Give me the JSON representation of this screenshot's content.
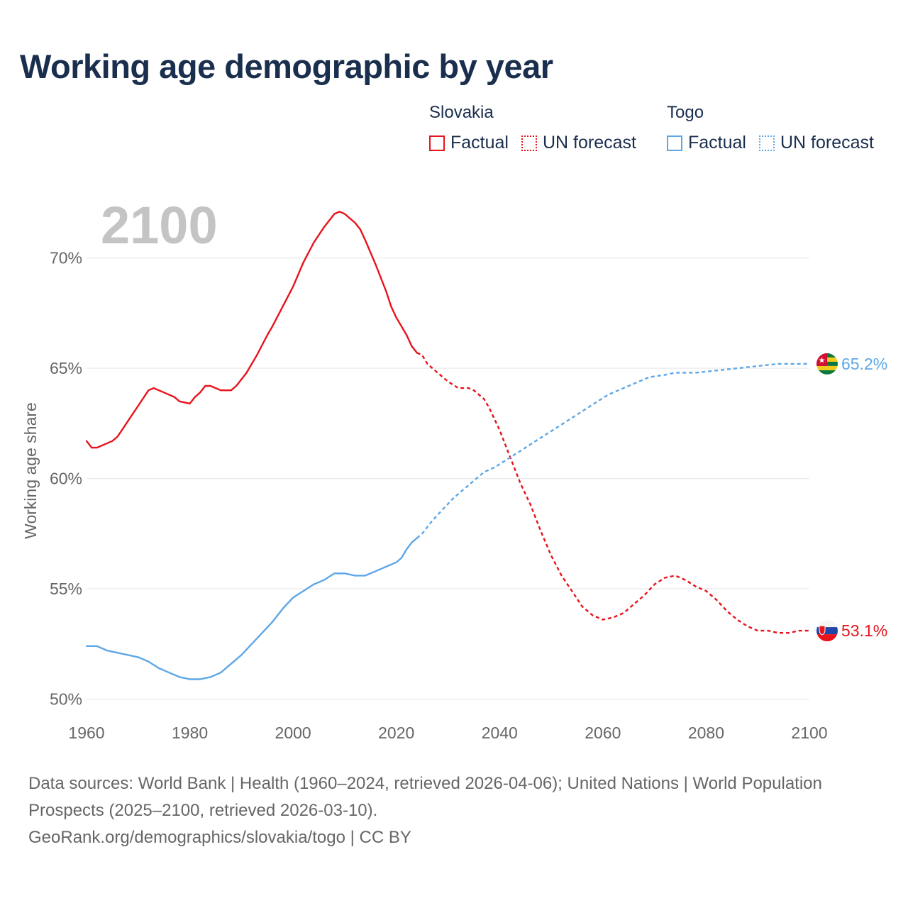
{
  "title": "Working age demographic by year",
  "legend": {
    "groups": [
      {
        "name": "Slovakia",
        "items": [
          "Factual",
          "UN forecast"
        ],
        "color": "#e8131b"
      },
      {
        "name": "Togo",
        "items": [
          "Factual",
          "UN forecast"
        ],
        "color": "#5ea7e6"
      }
    ]
  },
  "footer": {
    "sources": "Data sources: World Bank | Health (1960–2024, retrieved 2026-04-06); United Nations | World Population Prospects (2025–2100, retrieved 2026-03-10).",
    "link": "GeoRank.org/demographics/slovakia/togo | CC BY"
  },
  "colors": {
    "slovakia": "#e8131b",
    "togo": "#5ea7e6",
    "grid": "#e6e6e6",
    "axis_text": "#666666",
    "year_watermark": "#c4c4c4"
  },
  "chart_data": {
    "type": "line",
    "year_label": "2100",
    "ylabel": "Working age share",
    "xlim": [
      1960,
      2100
    ],
    "ylim": [
      49.5,
      72.5
    ],
    "x_ticks": [
      1960,
      1980,
      2000,
      2020,
      2040,
      2060,
      2080,
      2100
    ],
    "x_tick_labels": [
      "1960",
      "1980",
      "2000",
      "2020",
      "2040",
      "2060",
      "2080",
      "2100"
    ],
    "y_ticks": [
      50,
      55,
      60,
      65,
      70
    ],
    "y_tick_labels": [
      "50%",
      "55%",
      "60%",
      "65%",
      "70%"
    ],
    "series": [
      {
        "name": "Slovakia",
        "color": "#e8131b",
        "end_label": "53.1%",
        "end_icon": "slovakia-flag-icon",
        "factual": [
          [
            1960,
            61.7
          ],
          [
            1961,
            61.4
          ],
          [
            1962,
            61.4
          ],
          [
            1964,
            61.6
          ],
          [
            1965,
            61.7
          ],
          [
            1966,
            61.9
          ],
          [
            1968,
            62.6
          ],
          [
            1970,
            63.3
          ],
          [
            1972,
            64.0
          ],
          [
            1973,
            64.1
          ],
          [
            1975,
            63.9
          ],
          [
            1977,
            63.7
          ],
          [
            1978,
            63.5
          ],
          [
            1980,
            63.4
          ],
          [
            1981,
            63.7
          ],
          [
            1982,
            63.9
          ],
          [
            1983,
            64.2
          ],
          [
            1984,
            64.2
          ],
          [
            1985,
            64.1
          ],
          [
            1986,
            64.0
          ],
          [
            1988,
            64.0
          ],
          [
            1989,
            64.2
          ],
          [
            1990,
            64.5
          ],
          [
            1991,
            64.8
          ],
          [
            1993,
            65.6
          ],
          [
            1995,
            66.5
          ],
          [
            1996,
            66.9
          ],
          [
            1998,
            67.8
          ],
          [
            2000,
            68.7
          ],
          [
            2002,
            69.8
          ],
          [
            2004,
            70.7
          ],
          [
            2006,
            71.4
          ],
          [
            2008,
            72.0
          ],
          [
            2009,
            72.1
          ],
          [
            2010,
            72.0
          ],
          [
            2011,
            71.8
          ],
          [
            2012,
            71.6
          ],
          [
            2013,
            71.3
          ],
          [
            2014,
            70.8
          ],
          [
            2016,
            69.7
          ],
          [
            2018,
            68.5
          ],
          [
            2019,
            67.8
          ],
          [
            2020,
            67.3
          ],
          [
            2022,
            66.5
          ],
          [
            2023,
            66.0
          ],
          [
            2024,
            65.7
          ]
        ],
        "forecast": [
          [
            2024,
            65.7
          ],
          [
            2025,
            65.6
          ],
          [
            2026,
            65.2
          ],
          [
            2028,
            64.8
          ],
          [
            2030,
            64.4
          ],
          [
            2032,
            64.1
          ],
          [
            2034,
            64.1
          ],
          [
            2035,
            64.0
          ],
          [
            2037,
            63.6
          ],
          [
            2038,
            63.2
          ],
          [
            2040,
            62.2
          ],
          [
            2042,
            61.0
          ],
          [
            2044,
            59.8
          ],
          [
            2046,
            58.8
          ],
          [
            2048,
            57.6
          ],
          [
            2050,
            56.5
          ],
          [
            2052,
            55.6
          ],
          [
            2054,
            54.9
          ],
          [
            2056,
            54.2
          ],
          [
            2058,
            53.8
          ],
          [
            2060,
            53.6
          ],
          [
            2062,
            53.7
          ],
          [
            2064,
            53.9
          ],
          [
            2066,
            54.3
          ],
          [
            2068,
            54.7
          ],
          [
            2070,
            55.2
          ],
          [
            2072,
            55.5
          ],
          [
            2074,
            55.6
          ],
          [
            2076,
            55.4
          ],
          [
            2078,
            55.1
          ],
          [
            2080,
            54.9
          ],
          [
            2082,
            54.5
          ],
          [
            2084,
            54.0
          ],
          [
            2086,
            53.6
          ],
          [
            2088,
            53.3
          ],
          [
            2090,
            53.1
          ],
          [
            2092,
            53.1
          ],
          [
            2094,
            53.0
          ],
          [
            2096,
            53.0
          ],
          [
            2098,
            53.1
          ],
          [
            2100,
            53.1
          ]
        ]
      },
      {
        "name": "Togo",
        "color": "#5ea7e6",
        "end_label": "65.2%",
        "end_icon": "togo-flag-icon",
        "factual": [
          [
            1960,
            52.4
          ],
          [
            1962,
            52.4
          ],
          [
            1964,
            52.2
          ],
          [
            1966,
            52.1
          ],
          [
            1968,
            52.0
          ],
          [
            1970,
            51.9
          ],
          [
            1972,
            51.7
          ],
          [
            1974,
            51.4
          ],
          [
            1976,
            51.2
          ],
          [
            1978,
            51.0
          ],
          [
            1980,
            50.9
          ],
          [
            1982,
            50.9
          ],
          [
            1984,
            51.0
          ],
          [
            1986,
            51.2
          ],
          [
            1988,
            51.6
          ],
          [
            1990,
            52.0
          ],
          [
            1992,
            52.5
          ],
          [
            1994,
            53.0
          ],
          [
            1996,
            53.5
          ],
          [
            1998,
            54.1
          ],
          [
            2000,
            54.6
          ],
          [
            2002,
            54.9
          ],
          [
            2004,
            55.2
          ],
          [
            2006,
            55.4
          ],
          [
            2008,
            55.7
          ],
          [
            2010,
            55.7
          ],
          [
            2012,
            55.6
          ],
          [
            2014,
            55.6
          ],
          [
            2016,
            55.8
          ],
          [
            2018,
            56.0
          ],
          [
            2020,
            56.2
          ],
          [
            2021,
            56.4
          ],
          [
            2022,
            56.8
          ],
          [
            2023,
            57.1
          ],
          [
            2024,
            57.3
          ]
        ],
        "forecast": [
          [
            2024,
            57.3
          ],
          [
            2025,
            57.5
          ],
          [
            2027,
            58.1
          ],
          [
            2029,
            58.6
          ],
          [
            2031,
            59.1
          ],
          [
            2033,
            59.5
          ],
          [
            2035,
            59.9
          ],
          [
            2037,
            60.3
          ],
          [
            2039,
            60.5
          ],
          [
            2041,
            60.8
          ],
          [
            2043,
            61.1
          ],
          [
            2045,
            61.4
          ],
          [
            2047,
            61.7
          ],
          [
            2049,
            62.0
          ],
          [
            2051,
            62.3
          ],
          [
            2053,
            62.6
          ],
          [
            2055,
            62.9
          ],
          [
            2057,
            63.2
          ],
          [
            2059,
            63.5
          ],
          [
            2061,
            63.8
          ],
          [
            2063,
            64.0
          ],
          [
            2065,
            64.2
          ],
          [
            2067,
            64.4
          ],
          [
            2069,
            64.6
          ],
          [
            2072,
            64.7
          ],
          [
            2074,
            64.8
          ],
          [
            2078,
            64.8
          ],
          [
            2082,
            64.9
          ],
          [
            2086,
            65.0
          ],
          [
            2090,
            65.1
          ],
          [
            2094,
            65.2
          ],
          [
            2100,
            65.2
          ]
        ]
      }
    ]
  }
}
